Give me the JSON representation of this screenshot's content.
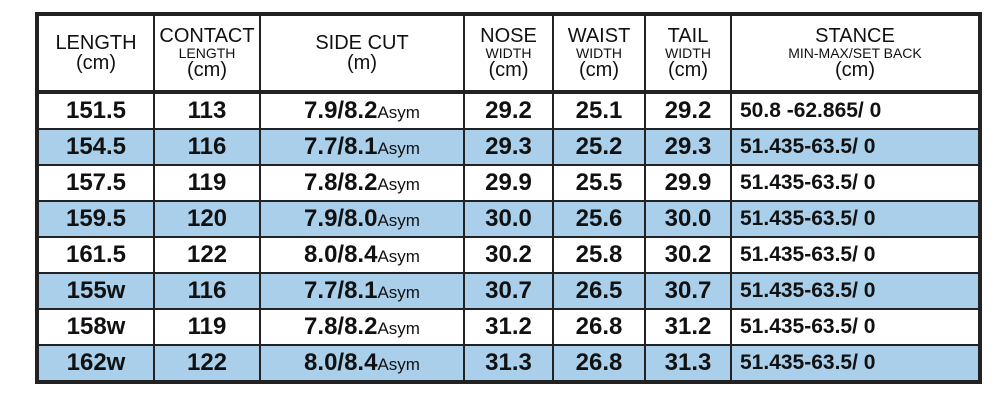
{
  "table": {
    "header": [
      [
        "LENGTH",
        "(cm)"
      ],
      [
        "CONTACT",
        "LENGTH",
        "(cm)"
      ],
      [
        "SIDE CUT",
        "(m)"
      ],
      [
        "NOSE",
        "WIDTH",
        "(cm)"
      ],
      [
        "WAIST",
        "WIDTH",
        "(cm)"
      ],
      [
        "TAIL",
        "WIDTH",
        "(cm)"
      ],
      [
        "STANCE",
        "MIN-MAX/SET BACK",
        "(cm)"
      ]
    ],
    "rows": [
      [
        "151.5",
        "113",
        {
          "value": "7.9/8.2",
          "suffix": "Asym"
        },
        "29.2",
        "25.1",
        "29.2",
        "50.8 -62.865/ 0"
      ],
      [
        "154.5",
        "116",
        {
          "value": "7.7/8.1",
          "suffix": "Asym"
        },
        "29.3",
        "25.2",
        "29.3",
        "51.435-63.5/ 0"
      ],
      [
        "157.5",
        "119",
        {
          "value": "7.8/8.2",
          "suffix": "Asym"
        },
        "29.9",
        "25.5",
        "29.9",
        "51.435-63.5/ 0"
      ],
      [
        "159.5",
        "120",
        {
          "value": "7.9/8.0",
          "suffix": "Asym"
        },
        "30.0",
        "25.6",
        "30.0",
        "51.435-63.5/ 0"
      ],
      [
        "161.5",
        "122",
        {
          "value": "8.0/8.4",
          "suffix": "Asym"
        },
        "30.2",
        "25.8",
        "30.2",
        "51.435-63.5/ 0"
      ],
      [
        "155w",
        "116",
        {
          "value": "7.7/8.1",
          "suffix": "Asym"
        },
        "30.7",
        "26.5",
        "30.7",
        "51.435-63.5/ 0"
      ],
      [
        "158w",
        "119",
        {
          "value": "7.8/8.2",
          "suffix": "Asym"
        },
        "31.2",
        "26.8",
        "31.2",
        "51.435-63.5/ 0"
      ],
      [
        "162w",
        "122",
        {
          "value": "8.0/8.4",
          "suffix": "Asym"
        },
        "31.3",
        "26.8",
        "31.3",
        "51.435-63.5/ 0"
      ]
    ]
  }
}
